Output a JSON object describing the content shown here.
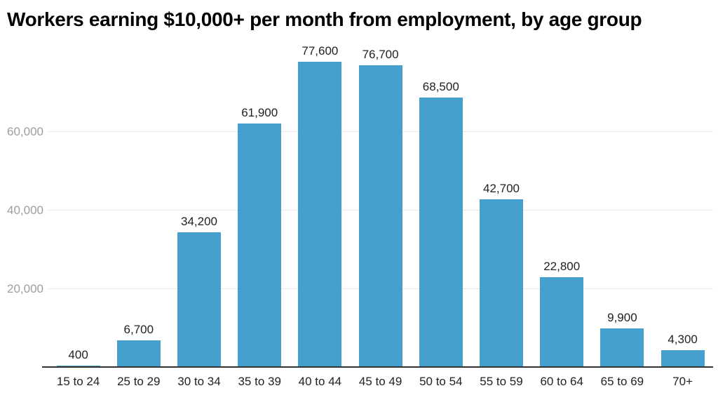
{
  "chart_data": {
    "type": "bar",
    "title": "Workers earning $10,000+ per month from employment, by age group",
    "xlabel": "",
    "ylabel": "",
    "categories": [
      "15 to 24",
      "25 to 29",
      "30 to 34",
      "35 to 39",
      "40 to 44",
      "45 to 49",
      "50 to 54",
      "55 to 59",
      "60 to 64",
      "65 to 69",
      "70+"
    ],
    "values": [
      400,
      6700,
      34200,
      61900,
      77600,
      76700,
      68500,
      42700,
      22800,
      9900,
      4300
    ],
    "value_labels": [
      "400",
      "6,700",
      "34,200",
      "61,900",
      "77,600",
      "76,700",
      "68,500",
      "42,700",
      "22,800",
      "9,900",
      "4,300"
    ],
    "ylim": [
      0,
      80000
    ],
    "yticks": [
      20000,
      40000,
      60000
    ],
    "ytick_labels": [
      "20,000",
      "40,000",
      "60,000"
    ],
    "grid": true,
    "legend": false,
    "colors": {
      "bar": "#46a0cd",
      "gridline": "#e6e6e6",
      "axis_line": "#333333",
      "ytick_text": "#9e9e9e",
      "xtick_text": "#222222",
      "value_text": "#222222",
      "title_text": "#000000",
      "background": "#ffffff"
    }
  }
}
